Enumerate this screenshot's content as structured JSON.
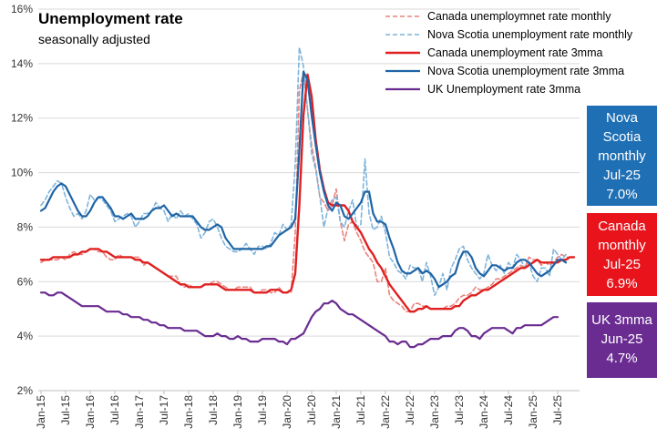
{
  "chart_data": {
    "type": "line",
    "title": "Unemployment rate",
    "subtitle": "seasonally adjusted",
    "ylim": [
      2,
      16
    ],
    "y_ticks": [
      "2%",
      "4%",
      "6%",
      "8%",
      "10%",
      "12%",
      "14%",
      "16%"
    ],
    "x_ticks": [
      "Jan-15",
      "Jul-15",
      "Jan-16",
      "Jul-16",
      "Jan-17",
      "Jul-17",
      "Jan-18",
      "Jul-18",
      "Jan-19",
      "Jul-19",
      "Jan-20",
      "Jul-20",
      "Jan-21",
      "Jul-21",
      "Jan-22",
      "Jul-22",
      "Jan-23",
      "Jul-23",
      "Jan-24",
      "Jul-24",
      "Jan-25",
      "Jul-25"
    ],
    "x_start": "2015-01",
    "gridlines": true,
    "legend_position": "top-right",
    "series": [
      {
        "name": "Canada unemploymnet rate monthly",
        "style": "dashed",
        "color": "#e8837d",
        "width": 1.6,
        "values": [
          6.7,
          6.8,
          6.8,
          6.8,
          6.8,
          6.9,
          6.8,
          7.0,
          7.1,
          7.0,
          7.0,
          7.1,
          7.2,
          7.2,
          7.1,
          7.1,
          6.9,
          6.8,
          6.8,
          7.0,
          6.9,
          6.9,
          6.9,
          6.9,
          6.9,
          6.6,
          6.7,
          6.6,
          6.5,
          6.4,
          6.3,
          6.2,
          6.2,
          6.2,
          5.9,
          5.8,
          5.9,
          5.8,
          5.8,
          5.8,
          5.9,
          5.9,
          6.0,
          6.0,
          5.9,
          5.8,
          5.7,
          5.7,
          5.8,
          5.8,
          5.8,
          5.8,
          5.6,
          5.6,
          5.7,
          5.7,
          5.6,
          5.6,
          5.8,
          5.6,
          5.6,
          5.6,
          7.8,
          13.0,
          13.7,
          12.3,
          11.0,
          10.2,
          9.1,
          8.9,
          8.6,
          8.8,
          9.4,
          8.2,
          7.5,
          8.1,
          8.2,
          7.8,
          7.5,
          7.1,
          6.9,
          6.7,
          6.0,
          6.0,
          6.5,
          5.5,
          5.3,
          5.2,
          5.1,
          4.9,
          4.9,
          5.2,
          5.2,
          5.1,
          5.1,
          5.0,
          5.0,
          5.0,
          5.0,
          5.1,
          5.1,
          5.2,
          5.4,
          5.5,
          5.5,
          5.6,
          5.8,
          5.7,
          5.7,
          5.8,
          5.9,
          6.1,
          6.1,
          6.2,
          6.3,
          6.4,
          6.5,
          6.6,
          6.5,
          6.9,
          6.8,
          6.8,
          6.6,
          6.7,
          6.6,
          6.7,
          6.9,
          7.0,
          6.9,
          6.9
        ]
      },
      {
        "name": "Nova Scotia unemployment rate monthly",
        "style": "dashed",
        "color": "#7fb4da",
        "width": 1.6,
        "values": [
          8.8,
          9.0,
          9.3,
          9.5,
          9.7,
          9.6,
          9.1,
          8.7,
          8.4,
          8.5,
          8.3,
          8.6,
          9.2,
          9.0,
          9.1,
          9.0,
          8.8,
          8.6,
          8.2,
          8.3,
          8.4,
          8.5,
          8.4,
          8.0,
          8.2,
          8.5,
          8.5,
          8.6,
          8.9,
          8.7,
          8.6,
          8.2,
          8.5,
          8.3,
          8.6,
          8.4,
          8.5,
          8.3,
          8.1,
          7.6,
          7.8,
          8.2,
          8.3,
          8.0,
          7.6,
          7.3,
          7.2,
          7.1,
          7.1,
          7.2,
          7.4,
          7.2,
          7.0,
          7.3,
          7.3,
          7.2,
          7.4,
          7.8,
          7.7,
          8.1,
          7.9,
          8.1,
          10.3,
          14.6,
          13.9,
          12.3,
          10.7,
          10.1,
          9.1,
          8.0,
          8.7,
          9.0,
          9.1,
          8.2,
          8.0,
          8.6,
          9.0,
          8.0,
          8.1,
          10.5,
          8.5,
          7.9,
          8.0,
          8.4,
          7.8,
          6.9,
          6.7,
          6.4,
          6.3,
          6.1,
          6.6,
          6.5,
          6.5,
          6.0,
          6.7,
          6.2,
          5.5,
          5.8,
          6.3,
          5.7,
          6.5,
          6.8,
          7.2,
          7.3,
          6.8,
          6.5,
          6.3,
          6.1,
          6.3,
          7.0,
          6.6,
          6.4,
          6.6,
          6.3,
          6.7,
          6.5,
          7.0,
          6.8,
          6.5,
          6.7,
          6.2,
          6.0,
          6.5,
          6.5,
          6.2,
          7.2,
          7.0,
          6.8,
          7.0
        ]
      },
      {
        "name": "Canada unemployment rate 3mma",
        "style": "solid",
        "color": "#e02020",
        "width": 2.4,
        "values": [
          6.8,
          6.8,
          6.8,
          6.9,
          6.9,
          6.9,
          6.9,
          6.9,
          7.0,
          7.0,
          7.1,
          7.1,
          7.2,
          7.2,
          7.2,
          7.1,
          7.1,
          7.0,
          6.9,
          6.9,
          6.9,
          6.9,
          6.9,
          6.8,
          6.8,
          6.7,
          6.7,
          6.6,
          6.5,
          6.4,
          6.3,
          6.2,
          6.1,
          6.0,
          5.9,
          5.9,
          5.8,
          5.8,
          5.8,
          5.8,
          5.9,
          5.9,
          5.9,
          5.9,
          5.8,
          5.7,
          5.7,
          5.7,
          5.7,
          5.7,
          5.7,
          5.7,
          5.6,
          5.6,
          5.6,
          5.6,
          5.7,
          5.7,
          5.7,
          5.6,
          5.6,
          5.7,
          6.3,
          8.8,
          12.1,
          13.6,
          12.8,
          11.2,
          10.1,
          9.4,
          8.9,
          8.8,
          8.8,
          8.8,
          8.8,
          8.6,
          8.2,
          8.0,
          7.8,
          7.5,
          7.2,
          7.0,
          6.7,
          6.5,
          6.2,
          5.9,
          5.7,
          5.5,
          5.3,
          5.1,
          4.9,
          4.9,
          5.0,
          5.0,
          5.1,
          5.0,
          5.0,
          5.0,
          5.0,
          5.0,
          5.0,
          5.1,
          5.1,
          5.3,
          5.4,
          5.5,
          5.5,
          5.6,
          5.7,
          5.7,
          5.8,
          5.9,
          6.0,
          6.1,
          6.2,
          6.3,
          6.4,
          6.5,
          6.5,
          6.6,
          6.7,
          6.8,
          6.7,
          6.7,
          6.7,
          6.7,
          6.7,
          6.8,
          6.8,
          6.9,
          6.9
        ]
      },
      {
        "name": "Nova Scotia unemployment rate 3mma",
        "style": "solid",
        "color": "#1f64a6",
        "width": 2.2,
        "values": [
          8.6,
          8.7,
          9.0,
          9.3,
          9.5,
          9.6,
          9.5,
          9.2,
          8.9,
          8.6,
          8.4,
          8.4,
          8.6,
          8.9,
          9.1,
          9.1,
          8.9,
          8.7,
          8.4,
          8.4,
          8.3,
          8.4,
          8.5,
          8.3,
          8.3,
          8.3,
          8.4,
          8.6,
          8.7,
          8.7,
          8.8,
          8.6,
          8.4,
          8.5,
          8.4,
          8.4,
          8.4,
          8.4,
          8.2,
          8.0,
          7.9,
          7.9,
          8.0,
          8.1,
          8.0,
          7.6,
          7.4,
          7.2,
          7.2,
          7.2,
          7.2,
          7.2,
          7.2,
          7.2,
          7.2,
          7.3,
          7.3,
          7.5,
          7.7,
          7.8,
          7.9,
          8.0,
          8.3,
          10.8,
          13.7,
          13.4,
          12.1,
          11.0,
          10.0,
          9.3,
          8.8,
          8.6,
          8.9,
          8.8,
          8.4,
          8.3,
          8.5,
          8.7,
          8.9,
          9.3,
          9.3,
          8.5,
          8.2,
          8.2,
          8.1,
          7.6,
          7.2,
          6.7,
          6.4,
          6.3,
          6.3,
          6.4,
          6.5,
          6.3,
          6.4,
          6.3,
          6.1,
          5.8,
          5.9,
          6.0,
          6.2,
          6.3,
          6.8,
          7.1,
          7.1,
          6.9,
          6.5,
          6.3,
          6.2,
          6.4,
          6.6,
          6.6,
          6.5,
          6.4,
          6.5,
          6.5,
          6.7,
          6.8,
          6.8,
          6.7,
          6.5,
          6.3,
          6.2,
          6.3,
          6.4,
          6.6,
          6.8,
          6.8,
          6.7
        ]
      },
      {
        "name": "UK Unemployment rate 3mma",
        "style": "solid",
        "color": "#6a2c91",
        "width": 2.2,
        "values": [
          5.6,
          5.6,
          5.5,
          5.5,
          5.6,
          5.6,
          5.5,
          5.4,
          5.3,
          5.2,
          5.1,
          5.1,
          5.1,
          5.1,
          5.1,
          5.0,
          4.9,
          4.9,
          4.9,
          4.9,
          4.8,
          4.8,
          4.7,
          4.7,
          4.7,
          4.6,
          4.6,
          4.5,
          4.5,
          4.4,
          4.4,
          4.3,
          4.3,
          4.3,
          4.3,
          4.2,
          4.2,
          4.2,
          4.2,
          4.1,
          4.0,
          4.0,
          4.0,
          4.1,
          4.0,
          4.0,
          3.9,
          3.9,
          4.0,
          3.9,
          3.9,
          3.8,
          3.8,
          3.8,
          3.9,
          3.9,
          3.9,
          3.9,
          3.8,
          3.8,
          3.7,
          3.9,
          3.9,
          4.0,
          4.1,
          4.4,
          4.7,
          4.9,
          5.0,
          5.2,
          5.2,
          5.3,
          5.2,
          5.0,
          4.9,
          4.8,
          4.8,
          4.7,
          4.6,
          4.5,
          4.4,
          4.3,
          4.2,
          4.1,
          4.0,
          3.8,
          3.8,
          3.7,
          3.8,
          3.8,
          3.6,
          3.6,
          3.7,
          3.7,
          3.8,
          3.9,
          3.9,
          3.9,
          4.0,
          4.0,
          4.0,
          4.2,
          4.3,
          4.3,
          4.2,
          4.0,
          4.0,
          3.9,
          4.1,
          4.2,
          4.3,
          4.3,
          4.3,
          4.3,
          4.2,
          4.1,
          4.3,
          4.3,
          4.4,
          4.4,
          4.4,
          4.4,
          4.4,
          4.5,
          4.6,
          4.7,
          4.7
        ]
      }
    ],
    "callouts": [
      {
        "lines": [
          "Nova",
          "Scotia",
          "monthly",
          "Jul-25",
          "7.0%"
        ],
        "color": "#1f6fb4"
      },
      {
        "lines": [
          "Canada",
          "monthly",
          "Jul-25",
          "6.9%"
        ],
        "color": "#e8131b"
      },
      {
        "lines": [
          "UK 3mma",
          "Jun-25",
          "4.7%"
        ],
        "color": "#6a2c91"
      }
    ]
  }
}
